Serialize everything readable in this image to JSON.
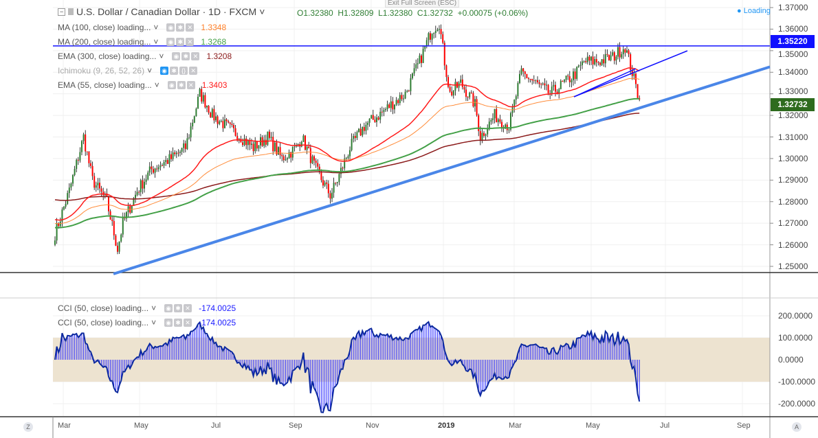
{
  "header": {
    "title": "U.S. Dollar / Canadian Dollar · 1D · FXCM",
    "open": "O1.32380",
    "high": "H1.32809",
    "low": "L1.32380",
    "close": "C1.32732",
    "change": "+0.00075 (+0.06%)",
    "exit_fullscreen": "Exit Full Screen (ESC)",
    "loading": "Loading"
  },
  "indicators": [
    {
      "label": "MA (100, close) loading...",
      "value": "1.3348",
      "color": "#ff7f27"
    },
    {
      "label": "MA (200, close) loading...",
      "value": "1.3268",
      "color": "#43a047"
    },
    {
      "label": "EMA (300, close) loading...",
      "value": "1.3208",
      "color": "#8b1a1a"
    },
    {
      "label": "Ichimoku (9, 26, 52, 26)",
      "value": "",
      "color": "#aaa"
    },
    {
      "label": "EMA (55, close) loading...",
      "value": "1.3403",
      "color": "#ff1a1a"
    }
  ],
  "cci_legends": [
    {
      "label": "CCI (50, close) loading...",
      "value": "-174.0025"
    },
    {
      "label": "CCI (50, close) loading...",
      "value": "-174.0025"
    }
  ],
  "price_axis": [
    "1.37000",
    "1.36000",
    "1.35000",
    "1.34000",
    "1.33000",
    "1.32000",
    "1.31000",
    "1.30000",
    "1.29000",
    "1.28000",
    "1.27000",
    "1.26000",
    "1.25000"
  ],
  "cci_axis": [
    "200.0000",
    "100.0000",
    "0.0000",
    "-100.0000",
    "-200.0000"
  ],
  "time_axis": [
    "Mar",
    "May",
    "Jul",
    "Sep",
    "Nov",
    "2019",
    "Mar",
    "May",
    "Jul",
    "Sep"
  ],
  "tags": {
    "horizontal": "1.35220",
    "last": "1.32732"
  },
  "corner": {
    "left": "Z",
    "right": "A"
  },
  "chart_data": {
    "type": "candlestick",
    "horizontal_level": 1.3522,
    "price_path": [
      [
        0,
        1.265
      ],
      [
        8,
        1.285
      ],
      [
        16,
        1.31
      ],
      [
        21,
        1.29
      ],
      [
        29,
        1.28
      ],
      [
        35,
        1.258
      ],
      [
        38,
        1.27
      ],
      [
        46,
        1.285
      ],
      [
        54,
        1.295
      ],
      [
        65,
        1.3
      ],
      [
        73,
        1.305
      ],
      [
        81,
        1.33
      ],
      [
        85,
        1.325
      ],
      [
        88,
        1.32
      ],
      [
        96,
        1.315
      ],
      [
        104,
        1.31
      ],
      [
        111,
        1.305
      ],
      [
        119,
        1.31
      ],
      [
        127,
        1.3
      ],
      [
        135,
        1.305
      ],
      [
        138,
        1.31
      ],
      [
        146,
        1.295
      ],
      [
        154,
        1.283
      ],
      [
        158,
        1.29
      ],
      [
        165,
        1.305
      ],
      [
        173,
        1.315
      ],
      [
        181,
        1.32
      ],
      [
        188,
        1.325
      ],
      [
        196,
        1.33
      ],
      [
        204,
        1.345
      ],
      [
        211,
        1.36
      ],
      [
        215,
        1.363
      ],
      [
        218,
        1.345
      ],
      [
        221,
        1.33
      ],
      [
        227,
        1.335
      ],
      [
        235,
        1.325
      ],
      [
        238,
        1.31
      ],
      [
        246,
        1.32
      ],
      [
        254,
        1.315
      ],
      [
        261,
        1.34
      ],
      [
        269,
        1.335
      ],
      [
        277,
        1.33
      ],
      [
        285,
        1.335
      ],
      [
        292,
        1.34
      ],
      [
        296,
        1.345
      ],
      [
        304,
        1.345
      ],
      [
        312,
        1.347
      ],
      [
        319,
        1.352
      ],
      [
        323,
        1.34
      ],
      [
        326,
        1.33
      ],
      [
        327,
        1.3273
      ]
    ]
  }
}
